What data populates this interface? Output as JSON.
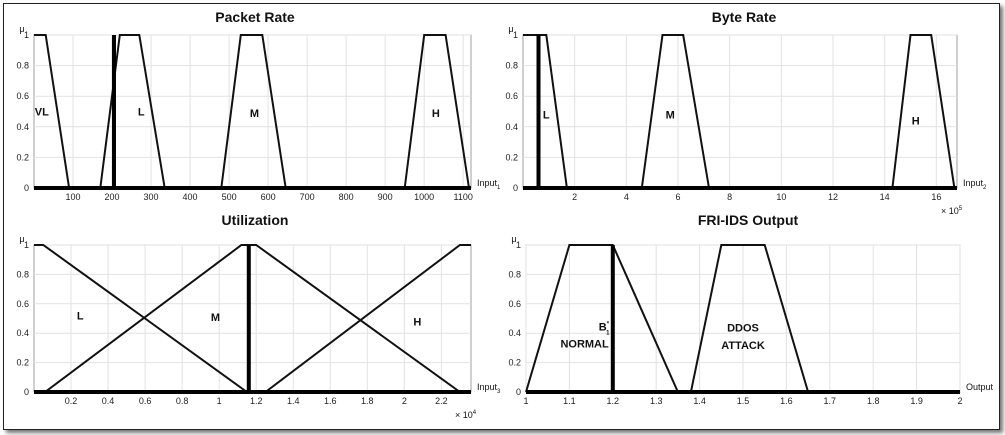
{
  "chart_data": [
    {
      "type": "line",
      "title": "Packet Rate",
      "ylabel": "μ",
      "xlabel": "Input",
      "xlabel_sub": "1",
      "xlim": [
        0,
        1120
      ],
      "ylim": [
        0,
        1
      ],
      "x_ticks": [
        100,
        200,
        300,
        400,
        500,
        600,
        700,
        800,
        900,
        1000,
        1100
      ],
      "x_tick_labels": [
        "100",
        "200",
        "300",
        "400",
        "500",
        "600",
        "700",
        "800",
        "900",
        "1000",
        "1100"
      ],
      "y_ticks": [
        0,
        0.2,
        0.4,
        0.6,
        0.8,
        1
      ],
      "y_tick_labels": [
        "0",
        "0.2",
        "0.4",
        "0.6",
        "0.8",
        "1"
      ],
      "x_multiplier": "",
      "grid": true,
      "series": [
        {
          "name": "VL",
          "points": [
            [
              0,
              1
            ],
            [
              30,
              1
            ],
            [
              90,
              0
            ]
          ]
        },
        {
          "name": "L",
          "points": [
            [
              170,
              0
            ],
            [
              220,
              1
            ],
            [
              270,
              1
            ],
            [
              335,
              0
            ]
          ]
        },
        {
          "name": "M",
          "points": [
            [
              480,
              0
            ],
            [
              530,
              1
            ],
            [
              585,
              1
            ],
            [
              645,
              0
            ]
          ]
        },
        {
          "name": "H",
          "points": [
            [
              950,
              0
            ],
            [
              1000,
              1
            ],
            [
              1055,
              1
            ],
            [
              1115,
              0
            ]
          ]
        }
      ],
      "label_positions": [
        {
          "text": "VL",
          "x": 20,
          "y": 0.5
        },
        {
          "text": "L",
          "x": 275,
          "y": 0.5
        },
        {
          "text": "M",
          "x": 565,
          "y": 0.49
        },
        {
          "text": "H",
          "x": 1030,
          "y": 0.49
        }
      ],
      "input_line_x": 205
    },
    {
      "type": "line",
      "title": "Byte Rate",
      "ylabel": "μ",
      "xlabel": "Input",
      "xlabel_sub": "2",
      "xlim": [
        0,
        16.8
      ],
      "ylim": [
        0,
        1
      ],
      "x_ticks": [
        2,
        4,
        6,
        8,
        10,
        12,
        14,
        16
      ],
      "x_tick_labels": [
        "2",
        "4",
        "6",
        "8",
        "10",
        "12",
        "14",
        "16"
      ],
      "y_ticks": [
        0,
        0.2,
        0.4,
        0.6,
        0.8,
        1
      ],
      "y_tick_labels": [
        "0",
        "0.2",
        "0.4",
        "0.6",
        "0.8",
        "1"
      ],
      "x_multiplier": "× 10",
      "x_multiplier_exp": "5",
      "grid": true,
      "series": [
        {
          "name": "L",
          "points": [
            [
              0,
              1
            ],
            [
              0.6,
              1
            ],
            [
              0.9,
              1
            ],
            [
              1.7,
              0
            ]
          ]
        },
        {
          "name": "M",
          "points": [
            [
              4.6,
              0
            ],
            [
              5.4,
              1
            ],
            [
              6.2,
              1
            ],
            [
              7.2,
              0
            ]
          ]
        },
        {
          "name": "H",
          "points": [
            [
              14.3,
              0
            ],
            [
              15.0,
              1
            ],
            [
              15.8,
              1
            ],
            [
              16.7,
              0
            ]
          ]
        }
      ],
      "label_positions": [
        {
          "text": "L",
          "x": 0.9,
          "y": 0.48
        },
        {
          "text": "M",
          "x": 5.7,
          "y": 0.48
        },
        {
          "text": "H",
          "x": 15.2,
          "y": 0.44
        }
      ],
      "input_line_x": 0.6
    },
    {
      "type": "line",
      "title": "Utilization",
      "ylabel": "μ",
      "xlabel": "Input",
      "xlabel_sub": "3",
      "xlim": [
        0,
        2.36
      ],
      "ylim": [
        0,
        1
      ],
      "x_ticks": [
        0.2,
        0.4,
        0.6,
        0.8,
        1,
        1.2,
        1.4,
        1.6,
        1.8,
        2,
        2.2
      ],
      "x_tick_labels": [
        "0.2",
        "0.4",
        "0.6",
        "0.8",
        "1",
        "1.2",
        "1.4",
        "1.6",
        "1.8",
        "2",
        "2.2"
      ],
      "y_ticks": [
        0,
        0.2,
        0.4,
        0.6,
        0.8,
        1
      ],
      "y_tick_labels": [
        "0",
        "0.2",
        "0.4",
        "0.6",
        "0.8",
        "1"
      ],
      "x_multiplier": "× 10",
      "x_multiplier_exp": "4",
      "grid": true,
      "series": [
        {
          "name": "L",
          "points": [
            [
              0,
              1
            ],
            [
              0.05,
              1
            ],
            [
              1.15,
              0
            ]
          ]
        },
        {
          "name": "M",
          "points": [
            [
              0.06,
              0
            ],
            [
              1.12,
              1
            ],
            [
              1.2,
              1
            ],
            [
              2.3,
              0
            ]
          ]
        },
        {
          "name": "H",
          "points": [
            [
              1.25,
              0
            ],
            [
              2.3,
              1
            ],
            [
              2.36,
              1
            ]
          ]
        }
      ],
      "label_positions": [
        {
          "text": "L",
          "x": 0.25,
          "y": 0.52
        },
        {
          "text": "M",
          "x": 0.98,
          "y": 0.51
        },
        {
          "text": "H",
          "x": 2.07,
          "y": 0.48
        }
      ],
      "input_line_x": 1.16
    },
    {
      "type": "line",
      "title": "FRI-IDS Output",
      "ylabel": "μ",
      "xlabel": "Output",
      "xlabel_sub": "",
      "xlim": [
        1,
        2
      ],
      "ylim": [
        0,
        1
      ],
      "x_ticks": [
        1,
        1.1,
        1.2,
        1.3,
        1.4,
        1.5,
        1.6,
        1.7,
        1.8,
        1.9,
        2
      ],
      "x_tick_labels": [
        "1",
        "1.1",
        "1.2",
        "1.3",
        "1.4",
        "1.5",
        "1.6",
        "1.7",
        "1.8",
        "1.9",
        "2"
      ],
      "y_ticks": [
        0,
        0.2,
        0.4,
        0.6,
        0.8,
        1
      ],
      "y_tick_labels": [
        "0",
        "0.2",
        "0.4",
        "0.6",
        "0.8",
        "1"
      ],
      "x_multiplier": "",
      "grid": true,
      "series": [
        {
          "name": "NORMAL",
          "points": [
            [
              1,
              0
            ],
            [
              1.1,
              1
            ],
            [
              1.2,
              1
            ],
            [
              1.35,
              0
            ]
          ]
        },
        {
          "name": "DDOS ATTACK",
          "points": [
            [
              1.38,
              0
            ],
            [
              1.45,
              1
            ],
            [
              1.55,
              1
            ],
            [
              1.65,
              0
            ]
          ]
        }
      ],
      "label_positions": [
        {
          "text": "NORMAL",
          "x": 1.135,
          "y": 0.33
        },
        {
          "text": "DDOS",
          "x": 1.5,
          "y": 0.44
        },
        {
          "text": "ATTACK",
          "x": 1.5,
          "y": 0.32
        }
      ],
      "input_line_x": 1.2,
      "annotation": {
        "text": "B",
        "sup": "*",
        "sub": "1",
        "x": 1.18,
        "y": 0.42
      }
    }
  ]
}
